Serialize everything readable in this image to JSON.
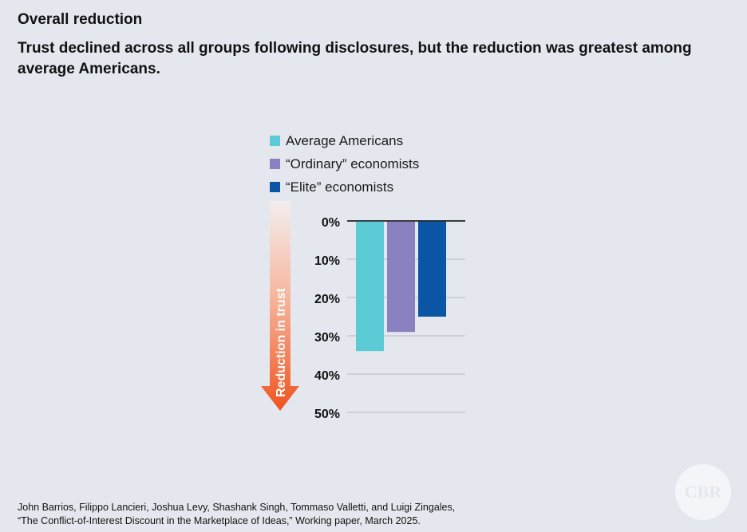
{
  "header": {
    "kicker": "Overall reduction",
    "headline": "Trust declined across all groups following disclosures, but the reduction was greatest among average Americans."
  },
  "chart_data": {
    "type": "bar",
    "orientation": "downward",
    "categories": [
      ""
    ],
    "series": [
      {
        "name": "Average Americans",
        "values": [
          34
        ],
        "color": "#5ccbd5"
      },
      {
        "name": "“Ordinary” economists",
        "values": [
          29
        ],
        "color": "#8a81c0"
      },
      {
        "name": "“Elite” economists",
        "values": [
          25
        ],
        "color": "#0b56a4"
      }
    ],
    "yticks": [
      "0%",
      "10%",
      "20%",
      "30%",
      "40%",
      "50%"
    ],
    "ylim": [
      0,
      50
    ],
    "ylabel": "Reduction in trust",
    "grid": true,
    "legend_position": "top"
  },
  "colors": {
    "background": "#e4e8ee",
    "arrow_top": "#f7e6df",
    "arrow_bottom": "#f0531f",
    "gridline": "#b4b8bf",
    "baseline": "#222222"
  },
  "source": {
    "line1": "John Barrios, Filippo Lancieri, Joshua Levy, Shashank Singh, Tommaso Valletti, and Luigi Zingales,",
    "line2": "“The Conflict-of-Interest Discount in the Marketplace of Ideas,” Working paper, March 2025."
  },
  "logo": {
    "text": "CBR"
  }
}
